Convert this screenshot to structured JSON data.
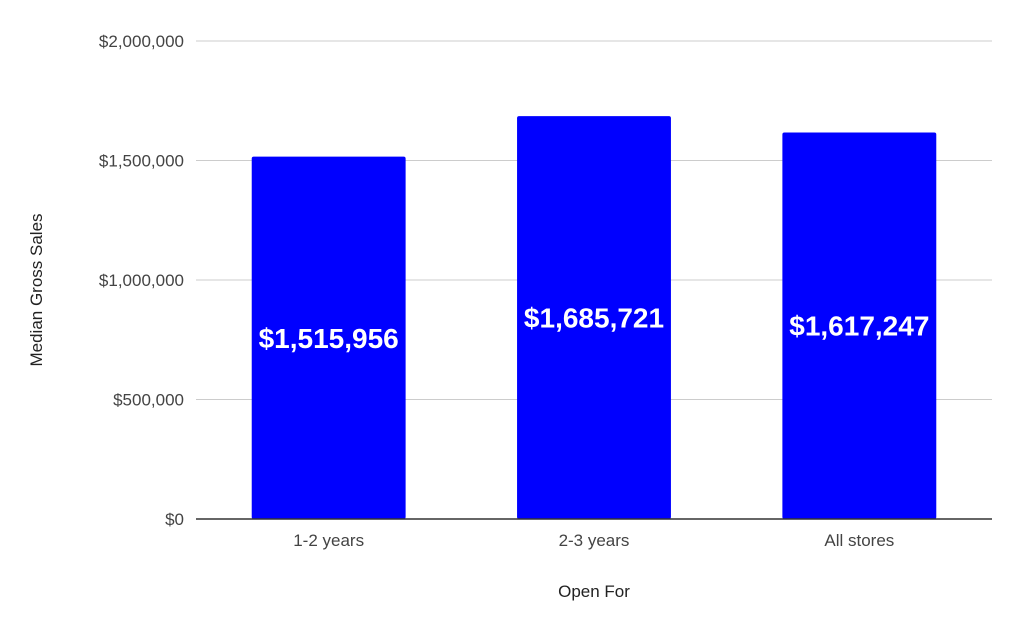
{
  "chart_data": {
    "type": "bar",
    "title": "",
    "xlabel": "Open For",
    "ylabel": "Median Gross Sales",
    "categories": [
      "1-2 years",
      "2-3 years",
      "All stores"
    ],
    "values": [
      1515956,
      1685721,
      1617247
    ],
    "data_labels": [
      "$1,515,956",
      "$1,685,721",
      "$1,617,247"
    ],
    "ylim": [
      0,
      2000000
    ],
    "yticks": [
      0,
      500000,
      1000000,
      1500000,
      2000000
    ],
    "ytick_labels": [
      "$0",
      "$500,000",
      "$1,000,000",
      "$1,500,000",
      "$2,000,000"
    ],
    "grid": true,
    "legend": "none",
    "colors": {
      "bar": "#0000ff",
      "grid": "#cccccc",
      "axis": "#333333",
      "data_label": "#ffffff"
    }
  }
}
